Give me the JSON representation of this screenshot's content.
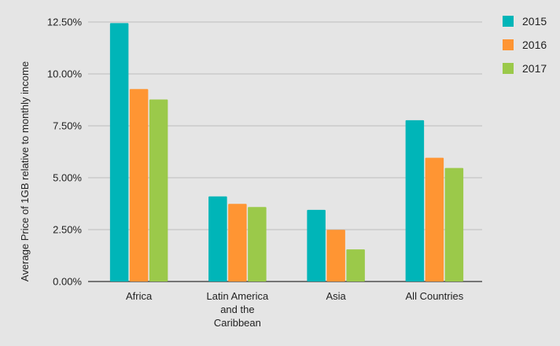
{
  "chart_data": {
    "type": "bar",
    "title": "",
    "xlabel": "",
    "ylabel": "Average Price of 1GB relative to monthly income",
    "categories": [
      "Africa",
      "Latin America and the Caribbean",
      "Asia",
      "All Countries"
    ],
    "category_lines": [
      [
        "Africa"
      ],
      [
        "Latin America",
        "and the",
        "Caribbean"
      ],
      [
        "Asia"
      ],
      [
        "All Countries"
      ]
    ],
    "series": [
      {
        "name": "2015",
        "color": "#00b5b8",
        "values": [
          12.45,
          4.1,
          3.45,
          7.77
        ]
      },
      {
        "name": "2016",
        "color": "#ff9533",
        "values": [
          9.27,
          3.74,
          2.49,
          5.96
        ]
      },
      {
        "name": "2017",
        "color": "#9bc94a",
        "values": [
          8.77,
          3.59,
          1.55,
          5.47
        ]
      }
    ],
    "ylim": [
      0,
      12.5
    ],
    "yticks": [
      0,
      2.5,
      5,
      7.5,
      10,
      12.5
    ],
    "ytick_labels": [
      "0.00%",
      "2.50%",
      "5.00%",
      "7.50%",
      "10.00%",
      "12.50%"
    ],
    "grid": true,
    "legend": "right"
  }
}
